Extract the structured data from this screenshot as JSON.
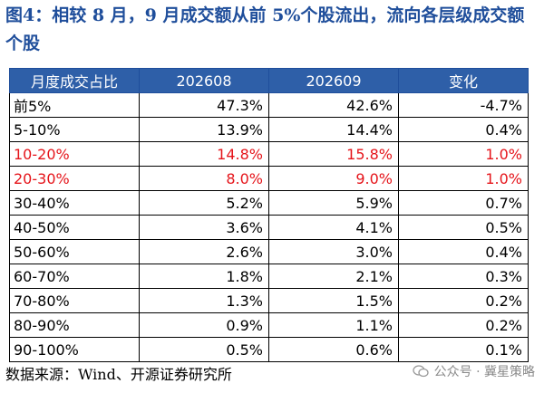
{
  "title": "图4：相较 8 月，9 月成交额从前 5%个股流出，流向各层级成交额个股",
  "table": {
    "headers": [
      "月度成交占比",
      "202608",
      "202609",
      "变化"
    ],
    "rows": [
      {
        "label": "前5%",
        "a": "47.3%",
        "b": "42.6%",
        "c": "-4.7%",
        "highlight": false
      },
      {
        "label": "5-10%",
        "a": "13.9%",
        "b": "14.4%",
        "c": "0.4%",
        "highlight": false
      },
      {
        "label": "10-20%",
        "a": "14.8%",
        "b": "15.8%",
        "c": "1.0%",
        "highlight": true
      },
      {
        "label": "20-30%",
        "a": "8.0%",
        "b": "9.0%",
        "c": "1.0%",
        "highlight": true
      },
      {
        "label": "30-40%",
        "a": "5.2%",
        "b": "5.9%",
        "c": "0.7%",
        "highlight": false
      },
      {
        "label": "40-50%",
        "a": "3.6%",
        "b": "4.1%",
        "c": "0.5%",
        "highlight": false
      },
      {
        "label": "50-60%",
        "a": "2.6%",
        "b": "3.0%",
        "c": "0.4%",
        "highlight": false
      },
      {
        "label": "60-70%",
        "a": "1.8%",
        "b": "2.1%",
        "c": "0.3%",
        "highlight": false
      },
      {
        "label": "70-80%",
        "a": "1.3%",
        "b": "1.5%",
        "c": "0.2%",
        "highlight": false
      },
      {
        "label": "80-90%",
        "a": "0.9%",
        "b": "1.1%",
        "c": "0.2%",
        "highlight": false
      },
      {
        "label": "90-100%",
        "a": "0.5%",
        "b": "0.6%",
        "c": "0.1%",
        "highlight": false
      }
    ]
  },
  "source": "数据来源：Wind、开源证券研究所",
  "watermark": "公众号 · 冀星策略",
  "colors": {
    "title": "#1f4e9b",
    "header_bg": "#2e5fa8",
    "highlight": "#e5141a"
  }
}
